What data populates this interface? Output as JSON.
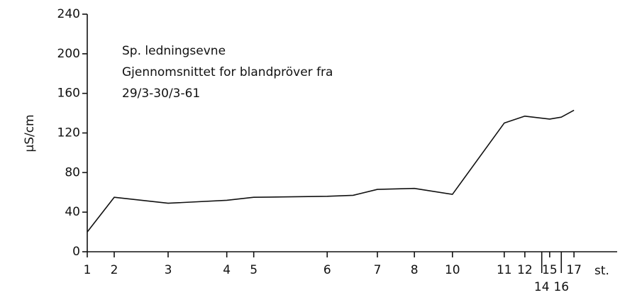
{
  "chart_data": {
    "type": "line",
    "title_lines": [
      "Sp. ledningsevne",
      "Gjennomsnittet for blandpröver fra",
      "29/3-30/3-61"
    ],
    "y_label": "µS/cm",
    "x_label": "st.",
    "x": [
      0,
      5.1,
      15.3,
      26.4,
      31.5,
      45.4,
      50.3,
      54.9,
      61.9,
      69.1,
      78.9,
      82.8,
      87.5,
      89.7,
      92.1
    ],
    "series": [
      {
        "color": "#111111",
        "values": [
          20,
          55,
          49,
          52,
          55,
          56,
          57,
          63,
          64,
          58,
          130,
          137,
          134,
          136,
          143
        ]
      }
    ],
    "xlim": [
      0,
      100
    ],
    "xticks": [
      {
        "value": 0,
        "label": "1"
      },
      {
        "value": 5.1,
        "label": "2"
      },
      {
        "value": 15.3,
        "label": "3"
      },
      {
        "value": 26.4,
        "label": "4"
      },
      {
        "value": 31.5,
        "label": "5"
      },
      {
        "value": 45.4,
        "label": "6"
      },
      {
        "value": 54.9,
        "label": "7"
      },
      {
        "value": 61.9,
        "label": "8"
      },
      {
        "value": 69.1,
        "label": "10"
      },
      {
        "value": 78.9,
        "label": "11"
      },
      {
        "value": 82.8,
        "label": "12"
      },
      {
        "value": 86.0,
        "label": "14"
      },
      {
        "value": 87.5,
        "label": "15"
      },
      {
        "value": 89.7,
        "label": "16"
      },
      {
        "value": 92.1,
        "label": "17"
      }
    ],
    "ylim": [
      0,
      240
    ],
    "yticks": [
      0,
      40,
      80,
      120,
      160,
      200,
      240
    ],
    "grid": false
  }
}
